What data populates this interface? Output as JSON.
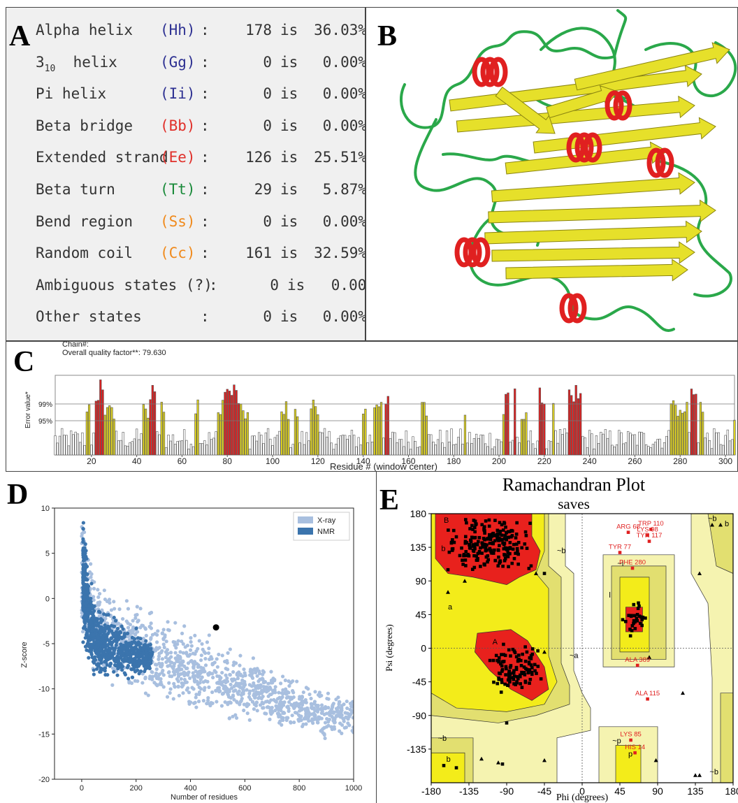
{
  "panel_labels": {
    "a": "A",
    "b": "B",
    "c": "C",
    "d": "D",
    "e": "E"
  },
  "secondary_structure": {
    "rows": [
      {
        "label": "Alpha helix",
        "code": "(Hh)",
        "code_color": "#2e3192",
        "count": "178",
        "is": "is",
        "pct": "36.03%"
      },
      {
        "label": "3",
        "sub": "10",
        "label_rest": "  helix",
        "code": "(Gg)",
        "code_color": "#2e3192",
        "count": "0",
        "is": "is",
        "pct": "0.00%"
      },
      {
        "label": "Pi helix",
        "code": "(Ii)",
        "code_color": "#2e3192",
        "count": "0",
        "is": "is",
        "pct": "0.00%"
      },
      {
        "label": "Beta bridge",
        "code": "(Bb)",
        "code_color": "#e0302a",
        "count": "0",
        "is": "is",
        "pct": "0.00%"
      },
      {
        "label": "Extended strand",
        "code": "(Ee)",
        "code_color": "#e0302a",
        "count": "126",
        "is": "is",
        "pct": "25.51%"
      },
      {
        "label": "Beta turn",
        "code": "(Tt)",
        "code_color": "#1a8a3a",
        "count": "29",
        "is": "is",
        "pct": "5.87%"
      },
      {
        "label": "Bend region",
        "code": "(Ss)",
        "code_color": "#f08a1c",
        "count": "0",
        "is": "is",
        "pct": "0.00%"
      },
      {
        "label": "Random coil",
        "code": "(Cc)",
        "code_color": "#f08a1c",
        "count": "161",
        "is": "is",
        "pct": "32.59%"
      },
      {
        "label": "Ambiguous states (?)",
        "code": "",
        "code_color": "#333",
        "count": "0",
        "is": "is",
        "pct": "0.00%"
      },
      {
        "label": "Other states",
        "code": "",
        "code_color": "#333",
        "count": "0",
        "is": "is",
        "pct": "0.00%"
      }
    ],
    "colon": ":"
  },
  "structure_colors": {
    "helix": "#e02020",
    "strand": "#e6e02a",
    "coil": "#2aa84a"
  },
  "chart_data": [
    {
      "type": "bar",
      "header_line1": "Chain#:",
      "header_line2": "Overall quality factor**: 79.630",
      "xlabel": "Residue # (window center)",
      "ylabel": "Error value*",
      "xlim": [
        4,
        304
      ],
      "x_ticks": [
        20,
        40,
        60,
        80,
        100,
        120,
        140,
        160,
        180,
        200,
        220,
        240,
        260,
        280,
        300
      ],
      "y_ticks": [
        "99%",
        "95%"
      ],
      "colors": {
        "red": "#dd2020",
        "yellow": "#dcd020",
        "white": "#ffffff"
      },
      "yellow_residues": [
        18,
        19,
        26,
        27,
        28,
        29,
        30,
        43,
        44,
        45,
        46,
        51,
        52,
        66,
        67,
        76,
        77,
        78,
        79,
        81,
        82,
        83,
        84,
        86,
        87,
        88,
        89,
        104,
        105,
        106,
        107,
        110,
        111,
        117,
        118,
        119,
        120,
        140,
        141,
        145,
        146,
        147,
        148,
        166,
        167,
        168,
        185,
        202,
        210,
        211,
        212,
        224,
        276,
        277,
        278,
        279,
        280,
        281,
        282,
        283,
        289,
        290,
        304
      ],
      "red_residues": [
        22,
        23,
        24,
        25,
        46,
        47,
        48,
        79,
        80,
        81,
        82,
        83,
        84,
        85,
        150,
        151,
        203,
        204,
        207,
        218,
        219,
        220,
        231,
        232,
        233,
        234,
        235,
        236,
        285,
        286,
        287
      ]
    },
    {
      "type": "scatter",
      "xlabel": "Number of residues",
      "ylabel": "Z-score",
      "xlim": [
        -100,
        1000
      ],
      "ylim": [
        -20,
        10
      ],
      "x_ticks": [
        0,
        200,
        400,
        600,
        800,
        1000
      ],
      "y_ticks": [
        10,
        5,
        0,
        -5,
        -10,
        -15,
        -20
      ],
      "legend": [
        {
          "name": "X-ray",
          "color": "#a8bfdf"
        },
        {
          "name": "NMR",
          "color": "#3b74ad"
        }
      ],
      "highlight": {
        "x": 494,
        "y": -3.2
      },
      "xray_band": [
        {
          "x": 0,
          "lo": -7,
          "hi": 10
        },
        {
          "x": 50,
          "lo": -9,
          "hi": 4
        },
        {
          "x": 100,
          "lo": -10,
          "hi": 2
        },
        {
          "x": 200,
          "lo": -11,
          "hi": 0
        },
        {
          "x": 300,
          "lo": -12,
          "hi": -1
        },
        {
          "x": 400,
          "lo": -13,
          "hi": -2.5
        },
        {
          "x": 500,
          "lo": -14,
          "hi": -4
        },
        {
          "x": 600,
          "lo": -14.5,
          "hi": -5.5
        },
        {
          "x": 700,
          "lo": -15,
          "hi": -7
        },
        {
          "x": 800,
          "lo": -16,
          "hi": -8
        },
        {
          "x": 900,
          "lo": -16,
          "hi": -9.5
        },
        {
          "x": 1000,
          "lo": -15.5,
          "hi": -10.5
        }
      ],
      "nmr_band": [
        {
          "x": 5,
          "lo": -6,
          "hi": 10
        },
        {
          "x": 25,
          "lo": -8,
          "hi": 4
        },
        {
          "x": 50,
          "lo": -9,
          "hi": 0
        },
        {
          "x": 100,
          "lo": -9.5,
          "hi": -1
        },
        {
          "x": 150,
          "lo": -9.5,
          "hi": -2
        },
        {
          "x": 200,
          "lo": -9.5,
          "hi": -3
        },
        {
          "x": 260,
          "lo": -8,
          "hi": -5
        }
      ]
    },
    {
      "type": "scatter",
      "title": "Ramachandran Plot",
      "subtitle": "saves",
      "xlabel": "Phi (degrees)",
      "ylabel": "Psi (degrees)",
      "xlim": [
        -180,
        180
      ],
      "ylim": [
        -180,
        180
      ],
      "x_ticks": [
        -180,
        -135,
        -90,
        -45,
        0,
        45,
        90,
        135,
        180
      ],
      "y_ticks": [
        180,
        135,
        90,
        45,
        0,
        -45,
        -90,
        -135
      ],
      "region_colors": {
        "core": "#e8211d",
        "allowed": "#f3ec1a",
        "generous": "#e2df70",
        "outer": "#f5f3b0"
      },
      "region_labels": [
        {
          "t": "B",
          "phi": -165,
          "psi": 168
        },
        {
          "t": "b",
          "phi": -168,
          "psi": 130
        },
        {
          "t": "A",
          "phi": -107,
          "psi": 5
        },
        {
          "t": "a",
          "phi": -160,
          "psi": 52
        },
        {
          "t": "~b",
          "phi": -30,
          "psi": 127
        },
        {
          "t": "~a",
          "phi": -15,
          "psi": -13
        },
        {
          "t": "~l",
          "phi": 42,
          "psi": 110
        },
        {
          "t": "l",
          "phi": 32,
          "psi": 68
        },
        {
          "t": "~b",
          "phi": 150,
          "psi": 170
        },
        {
          "t": "b",
          "phi": 170,
          "psi": 163
        },
        {
          "t": "~b",
          "phi": -172,
          "psi": -124
        },
        {
          "t": "b",
          "phi": -162,
          "psi": -152
        },
        {
          "t": "~p",
          "phi": 36,
          "psi": -127
        },
        {
          "t": "p",
          "phi": 55,
          "psi": -145
        },
        {
          "t": "~b",
          "phi": 152,
          "psi": -169
        }
      ],
      "outlier_labels": [
        {
          "t": "ARG 68",
          "phi": 55,
          "psi": 160
        },
        {
          "t": "TRP 110",
          "phi": 82,
          "psi": 164
        },
        {
          "t": "LYS 98",
          "phi": 78,
          "psi": 156
        },
        {
          "t": "TYR 117",
          "phi": 80,
          "psi": 148
        },
        {
          "t": "TYR 77",
          "phi": 45,
          "psi": 133
        },
        {
          "t": "PHE 280",
          "phi": 60,
          "psi": 112
        },
        {
          "t": "ALA 389",
          "phi": 66,
          "psi": -18
        },
        {
          "t": "ALA 115",
          "phi": 78,
          "psi": -63
        },
        {
          "t": "LYS 85",
          "phi": 58,
          "psi": -118
        },
        {
          "t": "HIS 14",
          "phi": 63,
          "psi": -135
        }
      ]
    }
  ]
}
